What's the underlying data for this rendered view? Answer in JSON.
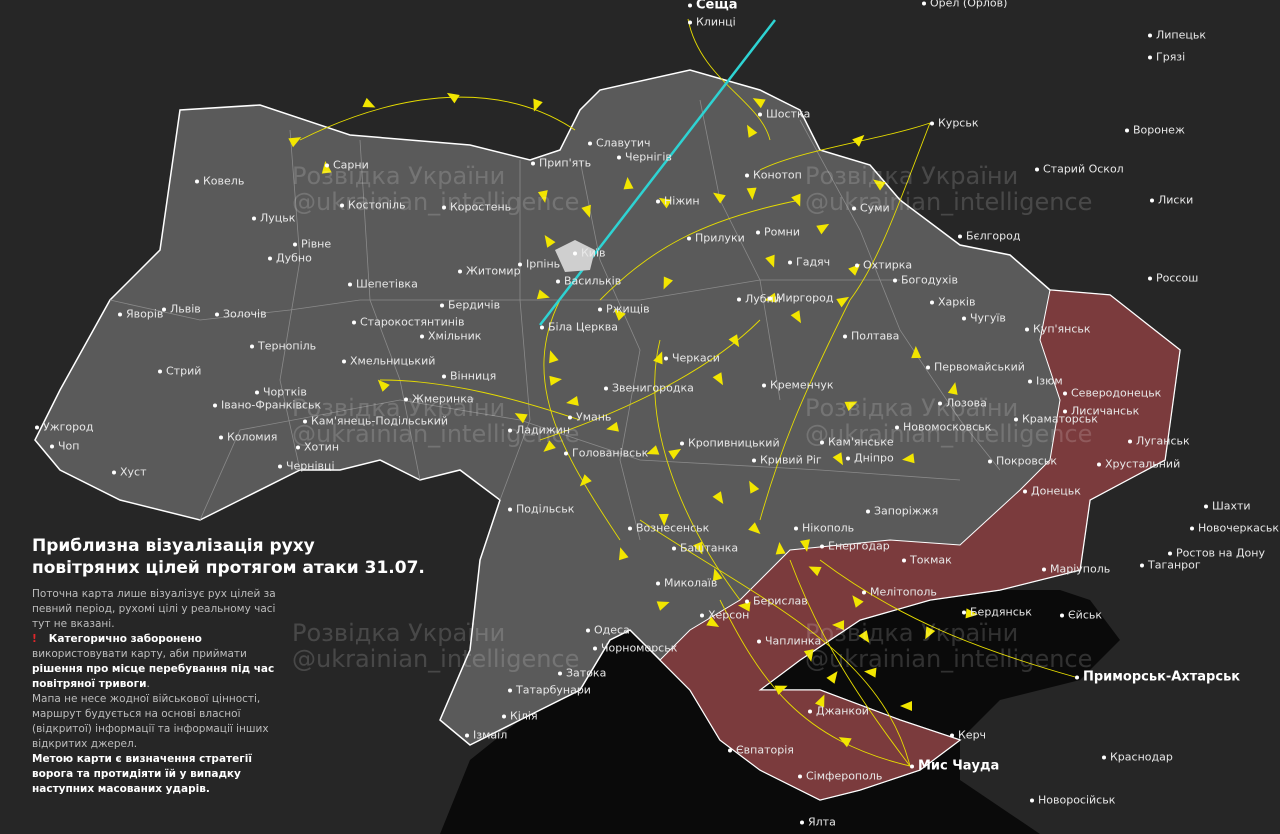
{
  "title_line1": "Приблизна візуалізація руху",
  "title_line2": "повітряних цілей протягом атаки 31.07.",
  "note1": "Поточна карта лише візуалізує рух цілей за певний період, рухомі цілі у реальному часі тут не вказані.",
  "warning_icon": "exclamation-icon",
  "warning_bold1": "Категорично заборонено",
  "warning_text": "використовувати карту, аби приймати",
  "warning_bold2": "рішення про місце перебування під час повітряної тривоги",
  "note2": "Мапа не несе жодної військової цінності, маршрут будується на основі власної (відкритої) інформації та інформації інших відкритих джерел.",
  "goal": "Метою карти є визначення стратегії ворога та протидіяти їй у випадку наступних масованих ударів.",
  "watermark": {
    "line1": "Розвідка України",
    "line2": "@ukrainian_intelligence"
  },
  "colors": {
    "background": "#262626",
    "ukraine": "#5a5a5a",
    "occupied": "#7b3b3d",
    "sea": "#0a0a0a",
    "routes": "#f2e600",
    "missile": "#2ed3d3"
  },
  "launch_points": [
    "Сеща",
    "Приморськ-Ахтарськ",
    "Мис Чауда"
  ],
  "cities": [
    "Сеща",
    "Клинці",
    "Орел (Орлов)",
    "Липецьк",
    "Грязі",
    "Курськ",
    "Воронеж",
    "Старий Оскол",
    "Лиски",
    "Бєлгород",
    "Россош",
    "Шостка",
    "Славутич",
    "Чернігів",
    "Прип'ять",
    "Конотоп",
    "Ніжин",
    "Суми",
    "Ромни",
    "Прилуки",
    "Ковель",
    "Сарни",
    "Костопіль",
    "Луцьк",
    "Рівне",
    "Дубно",
    "Коростень",
    "Житомир",
    "Ірпінь",
    "Київ",
    "Васильків",
    "Біла Церква",
    "Ржищів",
    "Бердичів",
    "Шепетівка",
    "Старокостянтинів",
    "Хмельницький",
    "Хмільник",
    "Яворів",
    "Львів",
    "Золочів",
    "Тернопіль",
    "Стрий",
    "Чортків",
    "Івано-Франківськ",
    "Коломия",
    "Ужгород",
    "Чоп",
    "Хуст",
    "Чернівці",
    "Хотин",
    "Кам'янець-Подільський",
    "Вінниця",
    "Жмеринка",
    "Ладижин",
    "Умань",
    "Черкаси",
    "Звенигородка",
    "Гадяч",
    "Лубни",
    "Миргород",
    "Охтирка",
    "Богодухів",
    "Полтава",
    "Кременчук",
    "Харків",
    "Чугуїв",
    "Куп'янськ",
    "Первомайський",
    "Ізюм",
    "Лозова",
    "Кам'янське",
    "Новомосковськ",
    "Дніпро",
    "Краматорськ",
    "Северодонецьк",
    "Лисичанськ",
    "Луганськ",
    "Хрустальний",
    "Покровськ",
    "Донецьк",
    "Кропивницький",
    "Голованівськ",
    "Кривий Ріг",
    "Запоріжжя",
    "Нікополь",
    "Енергодар",
    "Токмак",
    "Мелітополь",
    "Маріуполь",
    "Бердянськ",
    "Єйськ",
    "Таганрог",
    "Шахти",
    "Новочеркаськ",
    "Ростов на Дону",
    "Подільськ",
    "Вознесенськ",
    "Баштанка",
    "Миколаїв",
    "Херсон",
    "Берислав",
    "Чаплинка",
    "Одеса",
    "Чорноморськ",
    "Затока",
    "Татарбунари",
    "Кілія",
    "Ізмаїл",
    "Джанкой",
    "Євпаторія",
    "Сімферополь",
    "Керч",
    "Ялта",
    "Краснодар",
    "Новоросійськ",
    "Мис Чауда",
    "Приморськ-Ахтарськ"
  ]
}
